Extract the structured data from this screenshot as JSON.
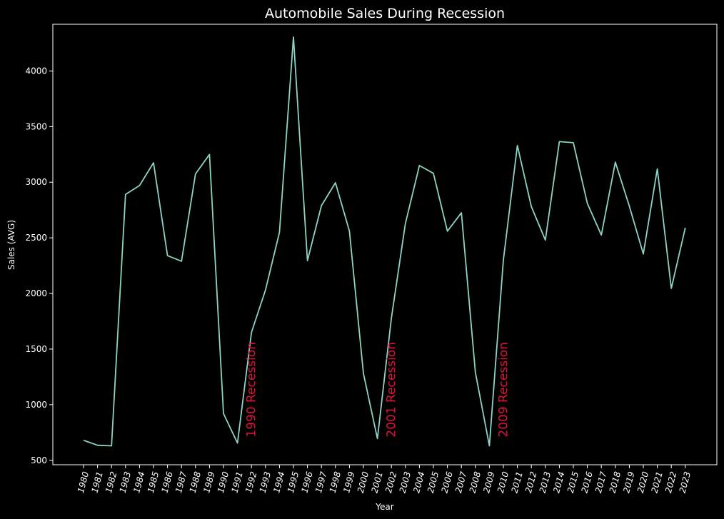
{
  "chart_data": {
    "type": "line",
    "title": "Automobile Sales During Recession",
    "xlabel": "Year",
    "ylabel": "Sales (AVG)",
    "x": [
      "1980",
      "1981",
      "1982",
      "1983",
      "1984",
      "1985",
      "1986",
      "1987",
      "1988",
      "1989",
      "1990",
      "1991",
      "1992",
      "1993",
      "1994",
      "1995",
      "1996",
      "1997",
      "1998",
      "1999",
      "2000",
      "2001",
      "2002",
      "2003",
      "2004",
      "2005",
      "2006",
      "2007",
      "2008",
      "2009",
      "2010",
      "2011",
      "2012",
      "2013",
      "2014",
      "2015",
      "2016",
      "2017",
      "2018",
      "2019",
      "2020",
      "2021",
      "2022",
      "2023"
    ],
    "series": [
      {
        "color": "#8dd3c7",
        "values": [
          680,
          635,
          630,
          2890,
          2970,
          3175,
          2340,
          2290,
          3075,
          3250,
          920,
          655,
          1650,
          2030,
          2550,
          4305,
          2295,
          2790,
          2995,
          2560,
          1280,
          695,
          1780,
          2630,
          3150,
          3080,
          2560,
          2725,
          1290,
          630,
          2300,
          3330,
          2780,
          2480,
          3365,
          3355,
          2810,
          2525,
          3180,
          2785,
          2355,
          3120,
          2045,
          2590
        ]
      }
    ],
    "yticks": [
      500,
      1000,
      1500,
      2000,
      2500,
      3000,
      3500,
      4000
    ],
    "ylim": [
      460,
      4420
    ],
    "grid": false,
    "background": "#000000",
    "axis_color": "#ffffff",
    "annotations": [
      {
        "text": "1990 Recession",
        "x": "1991",
        "y": 700,
        "color": "#e0103a"
      },
      {
        "text": "2001 Recession",
        "x": "2001",
        "y": 700,
        "color": "#e0103a"
      },
      {
        "text": "2009 Recession",
        "x": "2009",
        "y": 700,
        "color": "#e0103a"
      }
    ]
  }
}
